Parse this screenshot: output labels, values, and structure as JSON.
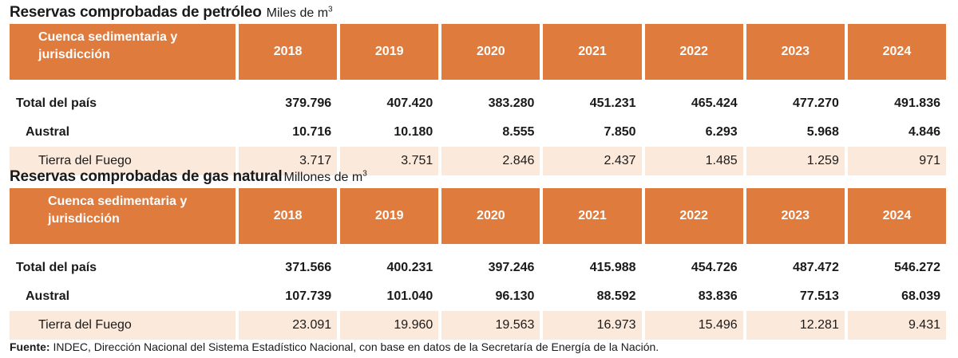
{
  "oil": {
    "title": "Reservas comprobadas de petróleo",
    "unit": "Miles de m",
    "unit_sup": "3",
    "header": {
      "label_line1": "Cuenca sedimentaria y",
      "label_line2": "jurisdicción",
      "years": [
        "2018",
        "2019",
        "2020",
        "2021",
        "2022",
        "2023",
        "2024"
      ]
    },
    "rows": [
      {
        "label": "Total del país",
        "values": [
          "379.796",
          "407.420",
          "383.280",
          "451.231",
          "465.424",
          "477.270",
          "491.836"
        ]
      },
      {
        "label": "Austral",
        "values": [
          "10.716",
          "10.180",
          "8.555",
          "7.850",
          "6.293",
          "5.968",
          "4.846"
        ]
      },
      {
        "label": "Tierra del Fuego",
        "values": [
          "3.717",
          "3.751",
          "2.846",
          "2.437",
          "1.485",
          "1.259",
          "971"
        ]
      }
    ]
  },
  "gas": {
    "title": "Reservas comprobadas de gas natural",
    "unit": "Millones de m",
    "unit_sup": "3",
    "header": {
      "label_line1": "Cuenca sedimentaria y",
      "label_line2": "jurisdicción",
      "years": [
        "2018",
        "2019",
        "2020",
        "2021",
        "2022",
        "2023",
        "2024"
      ]
    },
    "rows": [
      {
        "label": "Total del país",
        "values": [
          "371.566",
          "400.231",
          "397.246",
          "415.988",
          "454.726",
          "487.472",
          "546.272"
        ]
      },
      {
        "label": "Austral",
        "values": [
          "107.739",
          "101.040",
          "96.130",
          "88.592",
          "83.836",
          "77.513",
          "68.039"
        ]
      },
      {
        "label": "Tierra del Fuego",
        "values": [
          "23.091",
          "19.960",
          "19.563",
          "16.973",
          "15.496",
          "12.281",
          "9.431"
        ]
      }
    ]
  },
  "source": {
    "label": "Fuente:",
    "text": " INDEC, Dirección Nacional del Sistema Estadístico Nacional, con base en datos de la Secretaría de Energía de la Nación."
  }
}
